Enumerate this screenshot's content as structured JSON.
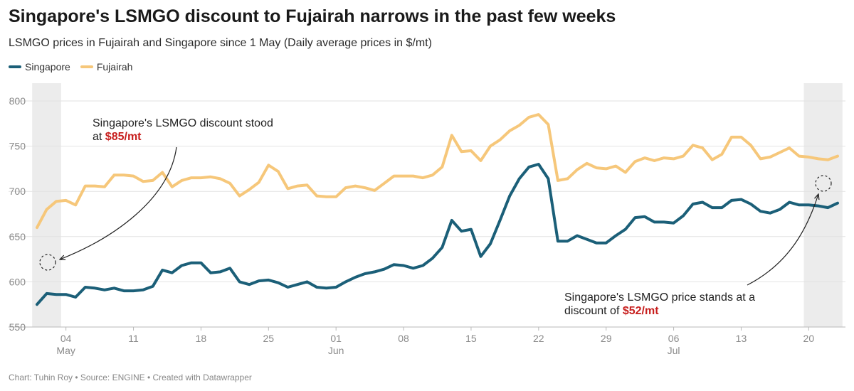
{
  "title": "Singapore's LSMGO discount to Fujairah narrows in the past few weeks",
  "subtitle": "LSMGO prices in Fujairah and Singapore since 1 May (Daily average prices in $/mt)",
  "footer": "Chart: Tuhin Roy • Source: ENGINE • Created with Datawrapper",
  "colors": {
    "singapore": "#1b5f78",
    "fujairah": "#f6c77a",
    "highlight": "#c71e1d",
    "shade": "#ececec",
    "grid": "#e2e2e2"
  },
  "chart_data": {
    "type": "line",
    "x_start": "2024-05-01",
    "x_end": "2024-07-23",
    "ylim": [
      550,
      800
    ],
    "yticks": [
      550,
      600,
      650,
      700,
      750,
      800
    ],
    "xticks": [
      {
        "date": "2024-05-04",
        "day": "04",
        "month": "May"
      },
      {
        "date": "2024-05-11",
        "day": "11",
        "month": ""
      },
      {
        "date": "2024-05-18",
        "day": "18",
        "month": ""
      },
      {
        "date": "2024-05-25",
        "day": "25",
        "month": ""
      },
      {
        "date": "2024-06-01",
        "day": "01",
        "month": "Jun"
      },
      {
        "date": "2024-06-08",
        "day": "08",
        "month": ""
      },
      {
        "date": "2024-06-15",
        "day": "15",
        "month": ""
      },
      {
        "date": "2024-06-22",
        "day": "22",
        "month": ""
      },
      {
        "date": "2024-06-29",
        "day": "29",
        "month": ""
      },
      {
        "date": "2024-07-06",
        "day": "06",
        "month": "Jul"
      },
      {
        "date": "2024-07-13",
        "day": "13",
        "month": ""
      },
      {
        "date": "2024-07-20",
        "day": "20",
        "month": ""
      }
    ],
    "shaded_ranges": [
      [
        "2024-05-01",
        "2024-05-03"
      ],
      [
        "2024-07-20",
        "2024-07-23"
      ]
    ],
    "series": [
      {
        "name": "Singapore",
        "points": [
          [
            "2024-05-01",
            575
          ],
          [
            "2024-05-02",
            587
          ],
          [
            "2024-05-03",
            586
          ],
          [
            "2024-05-04",
            586
          ],
          [
            "2024-05-05",
            583
          ],
          [
            "2024-05-06",
            594
          ],
          [
            "2024-05-07",
            593
          ],
          [
            "2024-05-08",
            591
          ],
          [
            "2024-05-09",
            593
          ],
          [
            "2024-05-10",
            590
          ],
          [
            "2024-05-11",
            590
          ],
          [
            "2024-05-12",
            591
          ],
          [
            "2024-05-13",
            595
          ],
          [
            "2024-05-14",
            613
          ],
          [
            "2024-05-15",
            610
          ],
          [
            "2024-05-16",
            618
          ],
          [
            "2024-05-17",
            621
          ],
          [
            "2024-05-18",
            621
          ],
          [
            "2024-05-19",
            610
          ],
          [
            "2024-05-20",
            611
          ],
          [
            "2024-05-21",
            615
          ],
          [
            "2024-05-22",
            600
          ],
          [
            "2024-05-23",
            597
          ],
          [
            "2024-05-24",
            601
          ],
          [
            "2024-05-25",
            602
          ],
          [
            "2024-05-26",
            599
          ],
          [
            "2024-05-27",
            594
          ],
          [
            "2024-05-28",
            597
          ],
          [
            "2024-05-29",
            600
          ],
          [
            "2024-05-30",
            594
          ],
          [
            "2024-05-31",
            593
          ],
          [
            "2024-06-01",
            594
          ],
          [
            "2024-06-02",
            600
          ],
          [
            "2024-06-03",
            605
          ],
          [
            "2024-06-04",
            609
          ],
          [
            "2024-06-05",
            611
          ],
          [
            "2024-06-06",
            614
          ],
          [
            "2024-06-07",
            619
          ],
          [
            "2024-06-08",
            618
          ],
          [
            "2024-06-09",
            615
          ],
          [
            "2024-06-10",
            618
          ],
          [
            "2024-06-11",
            626
          ],
          [
            "2024-06-12",
            638
          ],
          [
            "2024-06-13",
            668
          ],
          [
            "2024-06-14",
            656
          ],
          [
            "2024-06-15",
            658
          ],
          [
            "2024-06-16",
            628
          ],
          [
            "2024-06-17",
            642
          ],
          [
            "2024-06-18",
            668
          ],
          [
            "2024-06-19",
            695
          ],
          [
            "2024-06-20",
            714
          ],
          [
            "2024-06-21",
            727
          ],
          [
            "2024-06-22",
            730
          ],
          [
            "2024-06-23",
            714
          ],
          [
            "2024-06-24",
            645
          ],
          [
            "2024-06-25",
            645
          ],
          [
            "2024-06-26",
            651
          ],
          [
            "2024-06-27",
            647
          ],
          [
            "2024-06-28",
            643
          ],
          [
            "2024-06-29",
            643
          ],
          [
            "2024-06-30",
            651
          ],
          [
            "2024-07-01",
            658
          ],
          [
            "2024-07-02",
            671
          ],
          [
            "2024-07-03",
            672
          ],
          [
            "2024-07-04",
            666
          ],
          [
            "2024-07-05",
            666
          ],
          [
            "2024-07-06",
            665
          ],
          [
            "2024-07-07",
            673
          ],
          [
            "2024-07-08",
            686
          ],
          [
            "2024-07-09",
            688
          ],
          [
            "2024-07-10",
            682
          ],
          [
            "2024-07-11",
            682
          ],
          [
            "2024-07-12",
            690
          ],
          [
            "2024-07-13",
            691
          ],
          [
            "2024-07-14",
            686
          ],
          [
            "2024-07-15",
            678
          ],
          [
            "2024-07-16",
            676
          ],
          [
            "2024-07-17",
            680
          ],
          [
            "2024-07-18",
            688
          ],
          [
            "2024-07-19",
            685
          ],
          [
            "2024-07-20",
            685
          ],
          [
            "2024-07-21",
            684
          ],
          [
            "2024-07-22",
            682
          ],
          [
            "2024-07-23",
            687
          ]
        ]
      },
      {
        "name": "Fujairah",
        "points": [
          [
            "2024-05-01",
            660
          ],
          [
            "2024-05-02",
            680
          ],
          [
            "2024-05-03",
            689
          ],
          [
            "2024-05-04",
            690
          ],
          [
            "2024-05-05",
            685
          ],
          [
            "2024-05-06",
            706
          ],
          [
            "2024-05-07",
            706
          ],
          [
            "2024-05-08",
            705
          ],
          [
            "2024-05-09",
            718
          ],
          [
            "2024-05-10",
            718
          ],
          [
            "2024-05-11",
            717
          ],
          [
            "2024-05-12",
            711
          ],
          [
            "2024-05-13",
            712
          ],
          [
            "2024-05-14",
            721
          ],
          [
            "2024-05-15",
            705
          ],
          [
            "2024-05-16",
            712
          ],
          [
            "2024-05-17",
            715
          ],
          [
            "2024-05-18",
            715
          ],
          [
            "2024-05-19",
            716
          ],
          [
            "2024-05-20",
            714
          ],
          [
            "2024-05-21",
            709
          ],
          [
            "2024-05-22",
            695
          ],
          [
            "2024-05-23",
            702
          ],
          [
            "2024-05-24",
            710
          ],
          [
            "2024-05-25",
            729
          ],
          [
            "2024-05-26",
            722
          ],
          [
            "2024-05-27",
            703
          ],
          [
            "2024-05-28",
            706
          ],
          [
            "2024-05-29",
            707
          ],
          [
            "2024-05-30",
            695
          ],
          [
            "2024-05-31",
            694
          ],
          [
            "2024-06-01",
            694
          ],
          [
            "2024-06-02",
            704
          ],
          [
            "2024-06-03",
            706
          ],
          [
            "2024-06-04",
            704
          ],
          [
            "2024-06-05",
            701
          ],
          [
            "2024-06-06",
            709
          ],
          [
            "2024-06-07",
            717
          ],
          [
            "2024-06-08",
            717
          ],
          [
            "2024-06-09",
            717
          ],
          [
            "2024-06-10",
            715
          ],
          [
            "2024-06-11",
            718
          ],
          [
            "2024-06-12",
            727
          ],
          [
            "2024-06-13",
            762
          ],
          [
            "2024-06-14",
            744
          ],
          [
            "2024-06-15",
            745
          ],
          [
            "2024-06-16",
            734
          ],
          [
            "2024-06-17",
            750
          ],
          [
            "2024-06-18",
            757
          ],
          [
            "2024-06-19",
            767
          ],
          [
            "2024-06-20",
            773
          ],
          [
            "2024-06-21",
            782
          ],
          [
            "2024-06-22",
            785
          ],
          [
            "2024-06-23",
            774
          ],
          [
            "2024-06-24",
            712
          ],
          [
            "2024-06-25",
            714
          ],
          [
            "2024-06-26",
            724
          ],
          [
            "2024-06-27",
            731
          ],
          [
            "2024-06-28",
            726
          ],
          [
            "2024-06-29",
            725
          ],
          [
            "2024-06-30",
            728
          ],
          [
            "2024-07-01",
            721
          ],
          [
            "2024-07-02",
            733
          ],
          [
            "2024-07-03",
            737
          ],
          [
            "2024-07-04",
            734
          ],
          [
            "2024-07-05",
            737
          ],
          [
            "2024-07-06",
            736
          ],
          [
            "2024-07-07",
            739
          ],
          [
            "2024-07-08",
            751
          ],
          [
            "2024-07-09",
            748
          ],
          [
            "2024-07-10",
            735
          ],
          [
            "2024-07-11",
            741
          ],
          [
            "2024-07-12",
            760
          ],
          [
            "2024-07-13",
            760
          ],
          [
            "2024-07-14",
            751
          ],
          [
            "2024-07-15",
            736
          ],
          [
            "2024-07-16",
            738
          ],
          [
            "2024-07-17",
            743
          ],
          [
            "2024-07-18",
            748
          ],
          [
            "2024-07-19",
            739
          ],
          [
            "2024-07-20",
            738
          ],
          [
            "2024-07-21",
            736
          ],
          [
            "2024-07-22",
            735
          ],
          [
            "2024-07-23",
            739
          ]
        ]
      }
    ],
    "annotations": [
      {
        "lines": [
          [
            {
              "t": "Singapore's LSMGO discount stood"
            }
          ],
          [
            {
              "t": "at "
            },
            {
              "t": "$85/mt",
              "strong": true
            }
          ]
        ]
      },
      {
        "lines": [
          [
            {
              "t": "Singapore's LSMGO price stands at a"
            }
          ],
          [
            {
              "t": "discount of "
            },
            {
              "t": "$52/mt",
              "strong": true
            }
          ]
        ]
      }
    ]
  }
}
